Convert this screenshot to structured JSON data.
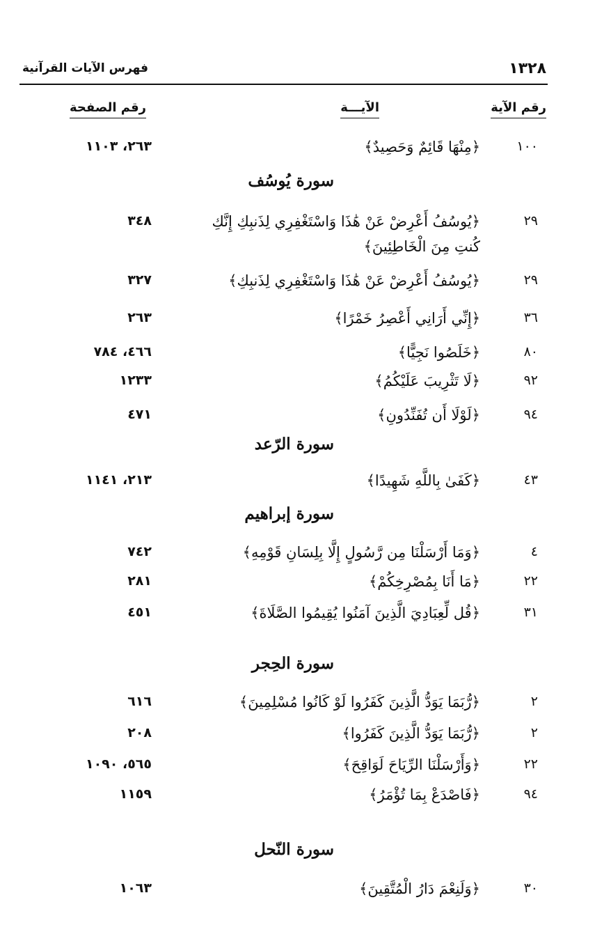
{
  "header": {
    "page_number": "١٣٢٨",
    "running_title": "فهرس الآيات القرآنية"
  },
  "columns": {
    "ayah_number": "رقم الآية",
    "ayah": "الآيـــة",
    "page_number": "رقم الصفحة"
  },
  "entries": [
    {
      "type": "row",
      "ayah_no": "١٠٠",
      "verse": "﴿مِنْهَا قَائِمٌ وَحَصِيدٌ﴾",
      "pages": "٢٦٣، ١١٠٣"
    },
    {
      "type": "surah",
      "title": "سورة يُوسُف"
    },
    {
      "type": "row",
      "ayah_no": "٢٩",
      "verse": "﴿يُوسُفُ أَعْرِضْ عَنْ هَٰذَا وَاسْتَغْفِرِي لِذَنبِكِ إِنَّكِ",
      "verse_cont": "كُنتِ مِنَ الْخَاطِئِينَ﴾",
      "pages": "٣٤٨"
    },
    {
      "type": "row",
      "ayah_no": "٢٩",
      "verse": "﴿يُوسُفُ أَعْرِضْ عَنْ هَٰذَا وَاسْتَغْفِرِي لِذَنبِكِ﴾",
      "pages": "٣٢٧"
    },
    {
      "type": "row",
      "ayah_no": "٣٦",
      "verse": "﴿إِنِّي أَرَانِي أَعْصِرُ خَمْرًا﴾",
      "pages": "٢٦٣"
    },
    {
      "type": "row",
      "ayah_no": "٨٠",
      "verse": "﴿خَلَصُوا نَجِيًّا﴾",
      "pages": "٤٦٦، ٧٨٤"
    },
    {
      "type": "row",
      "ayah_no": "٩٢",
      "verse": "﴿لَا تَثْرِيبَ عَلَيْكُمُ﴾",
      "pages": "١٢٣٣"
    },
    {
      "type": "row",
      "ayah_no": "٩٤",
      "verse": "﴿لَوْلَا أَن تُفَنِّدُونِ﴾",
      "pages": "٤٧١"
    },
    {
      "type": "surah",
      "title": "سورة الرّعد"
    },
    {
      "type": "row",
      "ayah_no": "٤٣",
      "verse": "﴿كَفَىٰ بِاللَّهِ شَهِيدًا﴾",
      "pages": "٢١٣، ١١٤١"
    },
    {
      "type": "surah",
      "title": "سورة إبراهيم"
    },
    {
      "type": "row",
      "ayah_no": "٤",
      "verse": "﴿وَمَا أَرْسَلْنَا مِن رَّسُولٍ إِلَّا بِلِسَانِ قَوْمِهِ﴾",
      "pages": "٧٤٢"
    },
    {
      "type": "row",
      "ayah_no": "٢٢",
      "verse": "﴿مَا أَنَا بِمُصْرِخِكُمْ﴾",
      "pages": "٢٨١"
    },
    {
      "type": "row",
      "ayah_no": "٣١",
      "verse": "﴿قُل لِّعِبَادِيَ الَّذِينَ آمَنُوا يُقِيمُوا الصَّلَاةَ﴾",
      "pages": "٤٥١"
    },
    {
      "type": "surah",
      "title": "سورة الحِجر"
    },
    {
      "type": "row",
      "ayah_no": "٢",
      "verse": "﴿رُّبَمَا يَوَدُّ الَّذِينَ كَفَرُوا لَوْ كَانُوا مُسْلِمِينَ﴾",
      "pages": "٦١٦"
    },
    {
      "type": "row",
      "ayah_no": "٢",
      "verse": "﴿رُّبَمَا يَوَدُّ الَّذِينَ كَفَرُوا﴾",
      "pages": "٢٠٨"
    },
    {
      "type": "row",
      "ayah_no": "٢٢",
      "verse": "﴿وَأَرْسَلْنَا الرِّيَاحَ لَوَاقِحَ﴾",
      "pages": "٥٦٥، ١٠٩٠"
    },
    {
      "type": "row",
      "ayah_no": "٩٤",
      "verse": "﴿فَاصْدَعْ بِمَا تُؤْمَرُ﴾",
      "pages": "١١٥٩"
    },
    {
      "type": "surah",
      "title": "سورة النّحل"
    },
    {
      "type": "row",
      "ayah_no": "٣٠",
      "verse": "﴿وَلَنِعْمَ دَارُ الْمُتَّقِينَ﴾",
      "pages": "١٠٦٣"
    }
  ]
}
